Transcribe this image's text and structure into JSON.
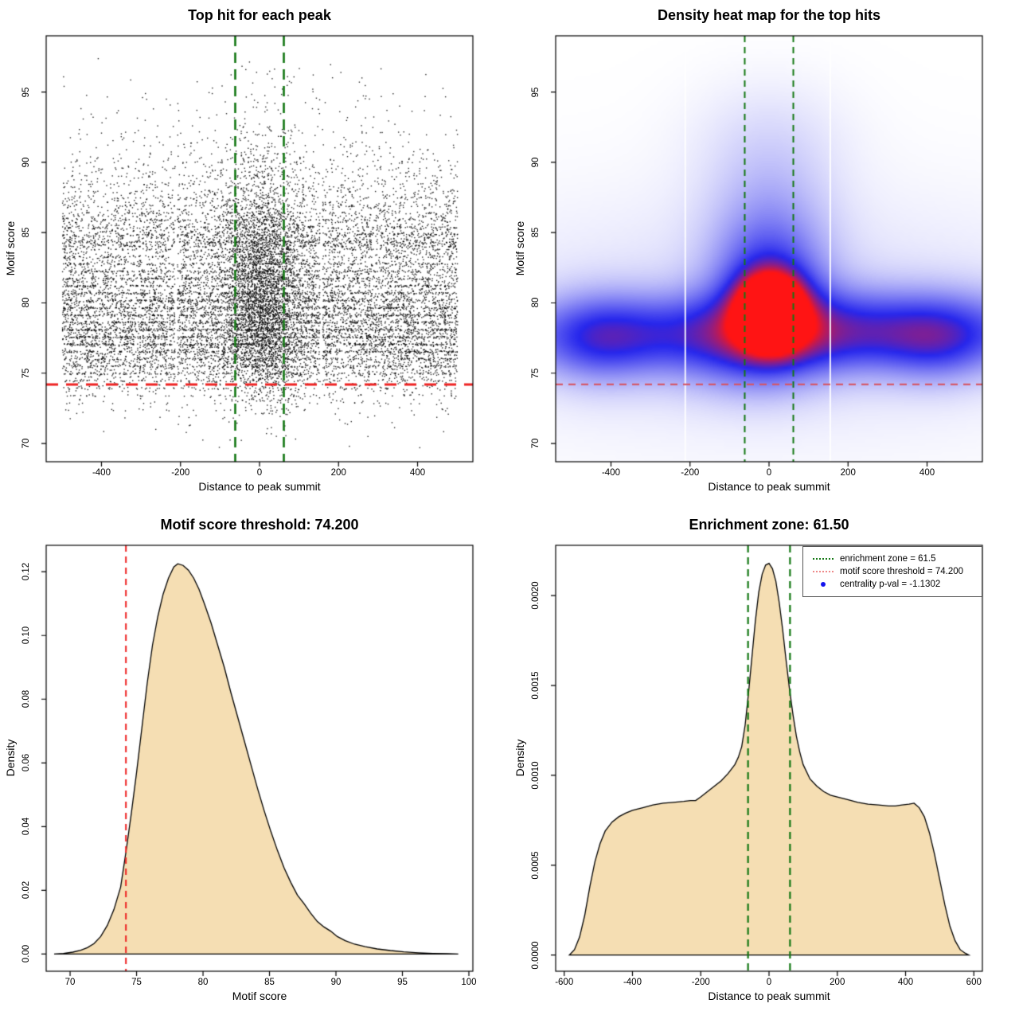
{
  "figure": {
    "background": "#ffffff",
    "panel_count": 4
  },
  "thresholds": {
    "motif_score_threshold": 74.2,
    "enrichment_zone": 61.5,
    "centrality_p_val": -1.1302
  },
  "chart_data": [
    {
      "id": "top-hit-scatter",
      "type": "scatter",
      "title": "Top hit for each peak",
      "xlabel": "Distance to peak summit",
      "ylabel": "Motif score",
      "xlim": [
        -540,
        540
      ],
      "ylim": [
        68.7,
        99.0
      ],
      "x_data_range": [
        -500,
        500
      ],
      "y_data_range": [
        69.7,
        97.6
      ],
      "xticks": [
        {
          "v": -400,
          "t": "-400"
        },
        {
          "v": -200,
          "t": "-200"
        },
        {
          "v": 0,
          "t": "0"
        },
        {
          "v": 200,
          "t": "200"
        },
        {
          "v": 400,
          "t": "400"
        }
      ],
      "yticks": [
        {
          "v": 70,
          "t": "70"
        },
        {
          "v": 75,
          "t": "75"
        },
        {
          "v": 80,
          "t": "80"
        },
        {
          "v": 85,
          "t": "85"
        },
        {
          "v": 90,
          "t": "90"
        },
        {
          "v": 95,
          "t": "95"
        }
      ],
      "point_color": "rgba(0,0,0,0.85)",
      "n_points": 16000,
      "cloud": {
        "base_share": 0.7,
        "cluster_share": 0.2,
        "cluster_center_x": 5,
        "cluster_sd_x": 54,
        "cluster_y_shift": 0.8,
        "band_step": 0.52,
        "band_share": 0.38,
        "upper_tail_start": 84.0,
        "upper_tail_mean": 3.0
      },
      "gap_columns": [
        -212,
        155
      ],
      "vlines": [
        {
          "x": -61.5,
          "color": "#147814",
          "dash": [
            13,
            8
          ],
          "width": 2.6
        },
        {
          "x": 61.5,
          "color": "#147814",
          "dash": [
            13,
            8
          ],
          "width": 2.6
        }
      ],
      "hlines": [
        {
          "y": 74.2,
          "color": "#EE2222",
          "dash": [
            15,
            10
          ],
          "width": 3
        }
      ]
    },
    {
      "id": "density-heatmap",
      "type": "heatmap",
      "title": "Density heat map for the top hits",
      "xlabel": "Distance to peak summit",
      "ylabel": "Motif score",
      "xlim": [
        -540,
        540
      ],
      "ylim": [
        68.7,
        99.0
      ],
      "xticks": [
        {
          "v": -400,
          "t": "-400"
        },
        {
          "v": -200,
          "t": "-200"
        },
        {
          "v": 0,
          "t": "0"
        },
        {
          "v": 200,
          "t": "200"
        },
        {
          "v": 400,
          "t": "400"
        }
      ],
      "yticks": [
        {
          "v": 70,
          "t": "70"
        },
        {
          "v": 75,
          "t": "75"
        },
        {
          "v": 80,
          "t": "80"
        },
        {
          "v": 85,
          "t": "85"
        },
        {
          "v": 90,
          "t": "90"
        },
        {
          "v": 95,
          "t": "95"
        }
      ],
      "colormap": {
        "stops": [
          [
            0.0,
            "#FFFFFF"
          ],
          [
            0.6,
            "#2626EC"
          ],
          [
            1.0,
            "#FF1414"
          ]
        ]
      },
      "hotspots": [
        {
          "cx": -120,
          "cy": 77.6,
          "sx": 420,
          "sy": 1.9,
          "a": 0.36
        },
        {
          "cx": 230,
          "cy": 78.2,
          "sx": 380,
          "sy": 2.0,
          "a": 0.33
        },
        {
          "cx": -430,
          "cy": 77.4,
          "sx": 95,
          "sy": 2.2,
          "a": 0.26
        },
        {
          "cx": 430,
          "cy": 77.2,
          "sx": 95,
          "sy": 2.0,
          "a": 0.24
        },
        {
          "cx": 0,
          "cy": 79.0,
          "sx": 600,
          "sy": 6.0,
          "a": 0.1
        },
        {
          "cx": 5,
          "cy": 79.4,
          "sx": 52,
          "sy": 1.6,
          "a": 1.5
        },
        {
          "cx": 0,
          "cy": 80.5,
          "sx": 95,
          "sy": 3.2,
          "a": 0.5
        },
        {
          "cx": 0,
          "cy": 86.0,
          "sx": 110,
          "sy": 3.5,
          "a": 0.17
        },
        {
          "cx": 0,
          "cy": 92.0,
          "sx": 140,
          "sy": 3.0,
          "a": 0.07
        },
        {
          "cx": -60,
          "cy": 75.0,
          "sx": 130,
          "sy": 1.8,
          "a": 0.1
        }
      ],
      "gap_columns": [
        -212,
        155
      ],
      "vlines": [
        {
          "x": -61.5,
          "color": "#147814",
          "dash": [
            8,
            6
          ],
          "width": 2
        },
        {
          "x": 61.5,
          "color": "#147814",
          "dash": [
            8,
            6
          ],
          "width": 2
        }
      ],
      "hlines": [
        {
          "y": 74.2,
          "color": "rgba(214,85,100,0.95)",
          "dash": [
            9,
            7
          ],
          "width": 2.2
        }
      ]
    },
    {
      "id": "motif-score-density",
      "type": "area",
      "title": "Motif score threshold: 74.200",
      "xlabel": "Motif score",
      "ylabel": "Density",
      "xlim": [
        68.2,
        100.3
      ],
      "ylim": [
        -0.0054,
        0.1283
      ],
      "xticks": [
        {
          "v": 70,
          "t": "70"
        },
        {
          "v": 75,
          "t": "75"
        },
        {
          "v": 80,
          "t": "80"
        },
        {
          "v": 85,
          "t": "85"
        },
        {
          "v": 90,
          "t": "90"
        },
        {
          "v": 95,
          "t": "95"
        },
        {
          "v": 100,
          "t": "100"
        }
      ],
      "yticks": [
        {
          "v": 0,
          "t": "0.00"
        },
        {
          "v": 0.02,
          "t": "0.02"
        },
        {
          "v": 0.04,
          "t": "0.04"
        },
        {
          "v": 0.06,
          "t": "0.06"
        },
        {
          "v": 0.08,
          "t": "0.08"
        },
        {
          "v": 0.1,
          "t": "0.10"
        },
        {
          "v": 0.12,
          "t": "0.12"
        }
      ],
      "fill": "#F5DEB3",
      "stroke": "#000000",
      "curve": [
        [
          68.8,
          0
        ],
        [
          69.5,
          0.0002
        ],
        [
          70.2,
          0.0006
        ],
        [
          70.8,
          0.0012
        ],
        [
          71.3,
          0.002
        ],
        [
          71.8,
          0.0033
        ],
        [
          72.3,
          0.0055
        ],
        [
          72.8,
          0.009
        ],
        [
          73.3,
          0.014
        ],
        [
          73.8,
          0.021
        ],
        [
          74.2,
          0.032
        ],
        [
          74.6,
          0.044
        ],
        [
          75.0,
          0.057
        ],
        [
          75.4,
          0.071
        ],
        [
          75.8,
          0.085
        ],
        [
          76.2,
          0.097
        ],
        [
          76.6,
          0.106
        ],
        [
          77.0,
          0.113
        ],
        [
          77.4,
          0.118
        ],
        [
          77.8,
          0.1215
        ],
        [
          78.1,
          0.1225
        ],
        [
          78.5,
          0.122
        ],
        [
          78.9,
          0.1205
        ],
        [
          79.3,
          0.118
        ],
        [
          79.7,
          0.1145
        ],
        [
          80.1,
          0.11
        ],
        [
          80.6,
          0.104
        ],
        [
          81.1,
          0.097
        ],
        [
          81.6,
          0.09
        ],
        [
          82.1,
          0.082
        ],
        [
          82.6,
          0.0745
        ],
        [
          83.1,
          0.067
        ],
        [
          83.6,
          0.0595
        ],
        [
          84.1,
          0.052
        ],
        [
          84.6,
          0.045
        ],
        [
          85.1,
          0.0385
        ],
        [
          85.6,
          0.0325
        ],
        [
          86.1,
          0.027
        ],
        [
          86.6,
          0.0225
        ],
        [
          87.1,
          0.0185
        ],
        [
          87.6,
          0.0158
        ],
        [
          88.1,
          0.0128
        ],
        [
          88.6,
          0.0102
        ],
        [
          89.1,
          0.0085
        ],
        [
          89.6,
          0.0072
        ],
        [
          90.1,
          0.0055
        ],
        [
          90.7,
          0.0042
        ],
        [
          91.4,
          0.0031
        ],
        [
          92.2,
          0.0023
        ],
        [
          93.1,
          0.0016
        ],
        [
          94.1,
          0.0011
        ],
        [
          95.1,
          0.0007
        ],
        [
          96.2,
          0.0004
        ],
        [
          97.3,
          0.0002
        ],
        [
          98.4,
          0.0001
        ],
        [
          99.2,
          0
        ]
      ],
      "vlines": [
        {
          "x": 74.2,
          "color": "#EE2222",
          "dash": [
            8,
            6
          ],
          "width": 2
        }
      ],
      "hlines": []
    },
    {
      "id": "distance-density",
      "type": "area",
      "title": "Enrichment zone: 61.50",
      "xlabel": "Distance to peak summit",
      "ylabel": "Density",
      "xlim": [
        -625,
        625
      ],
      "ylim": [
        -9e-05,
        0.00228
      ],
      "xticks": [
        {
          "v": -600,
          "t": "-600"
        },
        {
          "v": -400,
          "t": "-400"
        },
        {
          "v": -200,
          "t": "-200"
        },
        {
          "v": 0,
          "t": "0"
        },
        {
          "v": 200,
          "t": "200"
        },
        {
          "v": 400,
          "t": "400"
        },
        {
          "v": 600,
          "t": "600"
        }
      ],
      "yticks": [
        {
          "v": 0,
          "t": "0.0000"
        },
        {
          "v": 0.0005,
          "t": "0.0005"
        },
        {
          "v": 0.001,
          "t": "0.0010"
        },
        {
          "v": 0.0015,
          "t": "0.0015"
        },
        {
          "v": 0.002,
          "t": "0.0020"
        }
      ],
      "fill": "#F5DEB3",
      "stroke": "#000000",
      "curve": [
        [
          -585,
          0
        ],
        [
          -570,
          3e-05
        ],
        [
          -555,
          0.0001
        ],
        [
          -540,
          0.00022
        ],
        [
          -525,
          0.00038
        ],
        [
          -510,
          0.00052
        ],
        [
          -495,
          0.00062
        ],
        [
          -480,
          0.00069
        ],
        [
          -460,
          0.00074
        ],
        [
          -440,
          0.00077
        ],
        [
          -420,
          0.00079
        ],
        [
          -400,
          0.000805
        ],
        [
          -370,
          0.00082
        ],
        [
          -340,
          0.000835
        ],
        [
          -310,
          0.000845
        ],
        [
          -280,
          0.00085
        ],
        [
          -250,
          0.000855
        ],
        [
          -230,
          0.00086
        ],
        [
          -215,
          0.00086
        ],
        [
          -200,
          0.00088
        ],
        [
          -180,
          0.00091
        ],
        [
          -160,
          0.00094
        ],
        [
          -140,
          0.00097
        ],
        [
          -120,
          0.00101
        ],
        [
          -100,
          0.00106
        ],
        [
          -90,
          0.0011
        ],
        [
          -80,
          0.00116
        ],
        [
          -70,
          0.00128
        ],
        [
          -60,
          0.00146
        ],
        [
          -50,
          0.00166
        ],
        [
          -40,
          0.00186
        ],
        [
          -30,
          0.00202
        ],
        [
          -20,
          0.00212
        ],
        [
          -10,
          0.00217
        ],
        [
          0,
          0.00218
        ],
        [
          10,
          0.00215
        ],
        [
          20,
          0.00208
        ],
        [
          30,
          0.00196
        ],
        [
          40,
          0.00181
        ],
        [
          50,
          0.00164
        ],
        [
          60,
          0.00148
        ],
        [
          70,
          0.00134
        ],
        [
          80,
          0.00122
        ],
        [
          90,
          0.00113
        ],
        [
          100,
          0.00106
        ],
        [
          120,
          0.00098
        ],
        [
          140,
          0.00094
        ],
        [
          160,
          0.00091
        ],
        [
          180,
          0.00089
        ],
        [
          200,
          0.00088
        ],
        [
          230,
          0.000865
        ],
        [
          260,
          0.00085
        ],
        [
          290,
          0.00084
        ],
        [
          320,
          0.000835
        ],
        [
          350,
          0.00083
        ],
        [
          370,
          0.00083
        ],
        [
          390,
          0.000835
        ],
        [
          410,
          0.00084
        ],
        [
          425,
          0.000845
        ],
        [
          440,
          0.00082
        ],
        [
          455,
          0.00077
        ],
        [
          470,
          0.00068
        ],
        [
          485,
          0.00056
        ],
        [
          500,
          0.00042
        ],
        [
          515,
          0.00028
        ],
        [
          530,
          0.00016
        ],
        [
          545,
          8e-05
        ],
        [
          560,
          3e-05
        ],
        [
          575,
          1e-05
        ],
        [
          585,
          0
        ]
      ],
      "vlines": [
        {
          "x": -61.5,
          "color": "#147814",
          "dash": [
            9,
            6
          ],
          "width": 2.2
        },
        {
          "x": 61.5,
          "color": "#147814",
          "dash": [
            9,
            6
          ],
          "width": 2.2
        }
      ],
      "hlines": [],
      "legend": {
        "border_color": "#555555",
        "items": [
          {
            "label": "enrichment zone = 61.5",
            "swatch": "dotted-line",
            "color": "#147814"
          },
          {
            "label": "motif score threshold = 74.200",
            "swatch": "dotted-line",
            "color": "#EE8888"
          },
          {
            "label": "centrality p-val = -1.1302",
            "swatch": "dot",
            "color": "#1414EE"
          }
        ]
      }
    }
  ]
}
